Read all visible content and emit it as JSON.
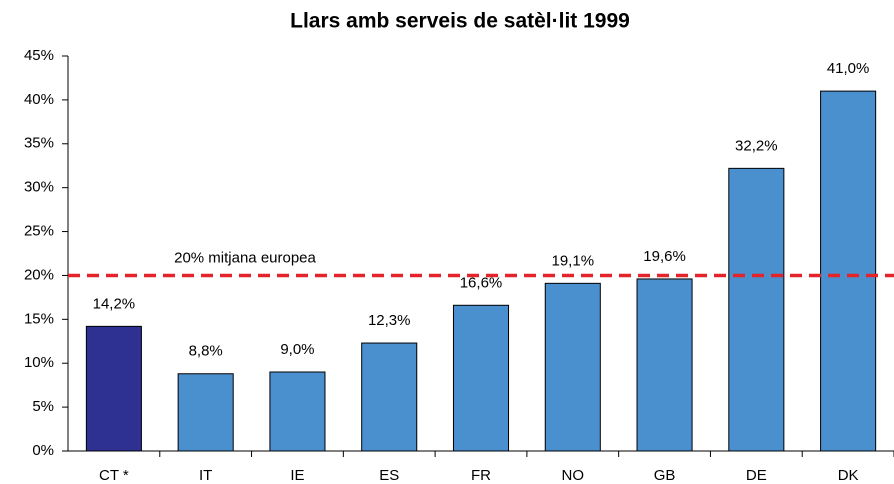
{
  "chart_data": {
    "type": "bar",
    "title": "Llars amb serveis de satèl·lit 1999",
    "categories": [
      "CT *",
      "IT",
      "IE",
      "ES",
      "FR",
      "NO",
      "GB",
      "DE",
      "DK"
    ],
    "values": [
      14.2,
      8.8,
      9.0,
      12.3,
      16.6,
      19.1,
      19.6,
      32.2,
      41.0
    ],
    "value_labels": [
      "14,2%",
      "8,8%",
      "9,0%",
      "12,3%",
      "16,6%",
      "19,1%",
      "19,6%",
      "32,2%",
      "41,0%"
    ],
    "colors": [
      "#2e3192",
      "#4a90cf",
      "#4a90cf",
      "#4a90cf",
      "#4a90cf",
      "#4a90cf",
      "#4a90cf",
      "#4a90cf",
      "#4a90cf"
    ],
    "ylim": [
      0,
      45
    ],
    "yticks": [
      {
        "value": 0,
        "label": "0%"
      },
      {
        "value": 5,
        "label": "5%"
      },
      {
        "value": 10,
        "label": "10%"
      },
      {
        "value": 15,
        "label": "15%"
      },
      {
        "value": 20,
        "label": "20%"
      },
      {
        "value": 25,
        "label": "25%"
      },
      {
        "value": 30,
        "label": "30%"
      },
      {
        "value": 35,
        "label": "35%"
      },
      {
        "value": 40,
        "label": "40%"
      },
      {
        "value": 45,
        "label": "45%"
      }
    ],
    "grid": false,
    "reference_line": {
      "value": 20,
      "label": "20% mitjana europea",
      "color": "#e3242b"
    }
  }
}
